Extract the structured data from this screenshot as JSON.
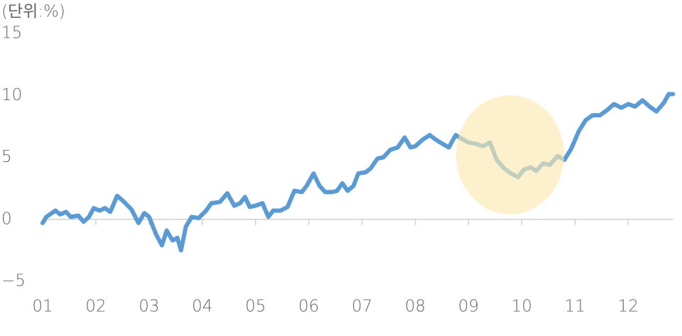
{
  "chart_data": {
    "type": "line",
    "unit_label": "(단위:%)",
    "x": [
      1.0,
      1.07,
      1.24,
      1.33,
      1.44,
      1.53,
      1.67,
      1.77,
      1.87,
      1.96,
      2.07,
      2.17,
      2.27,
      2.4,
      2.53,
      2.67,
      2.8,
      2.91,
      3.0,
      3.13,
      3.24,
      3.33,
      3.44,
      3.53,
      3.6,
      3.69,
      3.8,
      3.93,
      4.07,
      4.17,
      4.33,
      4.47,
      4.6,
      4.71,
      4.8,
      4.89,
      5.0,
      5.13,
      5.24,
      5.33,
      5.47,
      5.6,
      5.73,
      5.87,
      5.96,
      6.09,
      6.2,
      6.31,
      6.44,
      6.53,
      6.63,
      6.73,
      6.84,
      6.93,
      7.07,
      7.16,
      7.29,
      7.4,
      7.53,
      7.67,
      7.8,
      7.91,
      8.0,
      8.13,
      8.27,
      8.36,
      8.47,
      8.63,
      8.76,
      8.87,
      9.0,
      9.13,
      9.27,
      9.4,
      9.53,
      9.67,
      9.8,
      9.93,
      10.04,
      10.17,
      10.27,
      10.4,
      10.53,
      10.67,
      10.8,
      10.93,
      11.07,
      11.2,
      11.33,
      11.47,
      11.6,
      11.73,
      11.87,
      12.0,
      12.13,
      12.27,
      12.4,
      12.53,
      12.67,
      12.76,
      12.84
    ],
    "series": [
      {
        "color": "#5b9bd5",
        "values": [
          -0.3,
          0.2,
          0.7,
          0.4,
          0.6,
          0.2,
          0.3,
          -0.2,
          0.2,
          0.9,
          0.7,
          0.9,
          0.6,
          1.9,
          1.4,
          0.8,
          -0.3,
          0.5,
          0.2,
          -1.2,
          -2.1,
          -0.9,
          -1.7,
          -1.5,
          -2.5,
          -0.6,
          0.2,
          0.1,
          0.7,
          1.3,
          1.4,
          2.1,
          1.1,
          1.3,
          1.8,
          1.0,
          1.1,
          1.3,
          0.2,
          0.7,
          0.7,
          1.0,
          2.3,
          2.2,
          2.7,
          3.7,
          2.7,
          2.2,
          2.2,
          2.3,
          2.9,
          2.3,
          2.7,
          3.7,
          3.8,
          4.1,
          4.9,
          5.0,
          5.6,
          5.8,
          6.6,
          5.8,
          5.9,
          6.4,
          6.8,
          6.5,
          6.2,
          5.8,
          6.8,
          6.5,
          6.2,
          6.1,
          5.9,
          6.2,
          4.8,
          4.1,
          3.7,
          3.4,
          4.0,
          4.2,
          3.9,
          4.5,
          4.4,
          5.1,
          4.8,
          5.7,
          7.1,
          8.0,
          8.4,
          8.4,
          8.8,
          9.3,
          9.0,
          9.3,
          9.1,
          9.6,
          9.1,
          8.7,
          9.4,
          10.1,
          10.1
        ]
      }
    ],
    "xlim": [
      1,
      12.85
    ],
    "xticks": [
      {
        "value": 1,
        "label": "01"
      },
      {
        "value": 2,
        "label": "02"
      },
      {
        "value": 3,
        "label": "03"
      },
      {
        "value": 4,
        "label": "04"
      },
      {
        "value": 5,
        "label": "05"
      },
      {
        "value": 6,
        "label": "06"
      },
      {
        "value": 7,
        "label": "07"
      },
      {
        "value": 8,
        "label": "08"
      },
      {
        "value": 9,
        "label": "09"
      },
      {
        "value": 10,
        "label": "10"
      },
      {
        "value": 11,
        "label": "11"
      },
      {
        "value": 12,
        "label": "12"
      }
    ],
    "ylim": [
      -5,
      15
    ],
    "yticks": [
      {
        "value": -5,
        "label": "−5"
      },
      0,
      5,
      10,
      15
    ]
  }
}
